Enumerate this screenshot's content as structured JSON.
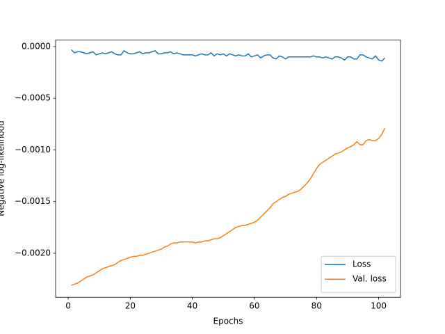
{
  "chart_data": {
    "type": "line",
    "x_label": "Epochs",
    "y_label": "Negative log-likelihood",
    "x": [
      1,
      2,
      3,
      4,
      5,
      6,
      7,
      8,
      9,
      10,
      11,
      12,
      13,
      14,
      15,
      16,
      17,
      18,
      19,
      20,
      21,
      22,
      23,
      24,
      25,
      26,
      27,
      28,
      29,
      30,
      31,
      32,
      33,
      34,
      35,
      36,
      37,
      38,
      39,
      40,
      41,
      42,
      43,
      44,
      45,
      46,
      47,
      48,
      49,
      50,
      51,
      52,
      53,
      54,
      55,
      56,
      57,
      58,
      59,
      60,
      61,
      62,
      63,
      64,
      65,
      66,
      67,
      68,
      69,
      70,
      71,
      72,
      73,
      74,
      75,
      76,
      77,
      78,
      79,
      80,
      81,
      82,
      83,
      84,
      85,
      86,
      87,
      88,
      89,
      90,
      91,
      92,
      93,
      94,
      95,
      96,
      97,
      98,
      99,
      100,
      101,
      102
    ],
    "series": [
      {
        "name": "Loss",
        "color": "#1f77b4",
        "values": [
          -3e-05,
          -6e-05,
          -5e-05,
          -5e-05,
          -6e-05,
          -7e-05,
          -6e-05,
          -5e-05,
          -8e-05,
          -7e-05,
          -6e-05,
          -7e-05,
          -6e-05,
          -5e-05,
          -7e-05,
          -8e-05,
          -8e-05,
          -4e-05,
          -6e-05,
          -7e-05,
          -7e-05,
          -6e-05,
          -5e-05,
          -7e-05,
          -6e-05,
          -6e-05,
          -5e-05,
          -4e-05,
          -7e-05,
          -7e-05,
          -6e-05,
          -6e-05,
          -5e-05,
          -7e-05,
          -6e-05,
          -7e-05,
          -8e-05,
          -8e-05,
          -8e-05,
          -8e-05,
          -9e-05,
          -8e-05,
          -7e-05,
          -8e-05,
          -8e-05,
          -6e-05,
          -9e-05,
          -7e-05,
          -8e-05,
          -7e-05,
          -9e-05,
          -7e-05,
          -8e-05,
          -9e-05,
          -8e-05,
          -9e-05,
          -9e-05,
          -7e-05,
          -0.0001,
          -9e-05,
          -8e-05,
          -0.00011,
          -9e-05,
          -8e-05,
          -8e-05,
          -0.00011,
          -0.00012,
          -9e-05,
          -0.0001,
          -0.00012,
          -0.0001,
          -0.0001,
          -0.0001,
          -0.0001,
          -0.0001,
          -0.0001,
          -0.0001,
          -0.0001,
          -9e-05,
          -0.0001,
          -0.0001,
          -0.00011,
          -0.0001,
          -0.00011,
          -0.00012,
          -0.0001,
          -0.0001,
          -0.00011,
          -0.00013,
          -0.0001,
          -0.0001,
          -0.00012,
          -0.00012,
          -8e-05,
          -8e-05,
          -0.0001,
          -0.00011,
          -0.00012,
          -9e-05,
          -0.00013,
          -0.00014,
          -0.00011
        ]
      },
      {
        "name": "Val. loss",
        "color": "#ff7f0e",
        "values": [
          -0.00231,
          -0.0023,
          -0.00229,
          -0.00227,
          -0.00225,
          -0.00223,
          -0.00222,
          -0.00221,
          -0.00219,
          -0.00217,
          -0.00215,
          -0.00214,
          -0.00213,
          -0.00212,
          -0.00211,
          -0.00209,
          -0.00207,
          -0.00206,
          -0.00205,
          -0.00204,
          -0.00203,
          -0.00203,
          -0.00202,
          -0.00202,
          -0.00201,
          -0.002,
          -0.00199,
          -0.00198,
          -0.00197,
          -0.00196,
          -0.00194,
          -0.00193,
          -0.00191,
          -0.0019,
          -0.0019,
          -0.00189,
          -0.00189,
          -0.00189,
          -0.00189,
          -0.00189,
          -0.0019,
          -0.00189,
          -0.00189,
          -0.00188,
          -0.00188,
          -0.00187,
          -0.00186,
          -0.00186,
          -0.00185,
          -0.00183,
          -0.00181,
          -0.00179,
          -0.00177,
          -0.00175,
          -0.00174,
          -0.00173,
          -0.00173,
          -0.00172,
          -0.00171,
          -0.0017,
          -0.00168,
          -0.00165,
          -0.00162,
          -0.00159,
          -0.00156,
          -0.00152,
          -0.0015,
          -0.00148,
          -0.00146,
          -0.00145,
          -0.00143,
          -0.00142,
          -0.00141,
          -0.0014,
          -0.00138,
          -0.00135,
          -0.00132,
          -0.00128,
          -0.00123,
          -0.00118,
          -0.00114,
          -0.00112,
          -0.0011,
          -0.00108,
          -0.00106,
          -0.00104,
          -0.00103,
          -0.00102,
          -0.001,
          -0.00098,
          -0.00097,
          -0.00095,
          -0.00092,
          -0.00095,
          -0.00095,
          -0.00091,
          -0.0009,
          -0.00091,
          -0.00091,
          -0.00089,
          -0.00085,
          -0.00079
        ]
      }
    ],
    "xlim": [
      -4.05,
      107.05
    ],
    "xticks": [
      0,
      20,
      40,
      60,
      80,
      100
    ],
    "ylim": [
      -0.002426,
      6.3e-05
    ],
    "yticks": [
      {
        "value": 0,
        "label": "0.0000"
      },
      {
        "value": -0.0005,
        "label": "−0.0005"
      },
      {
        "value": -0.001,
        "label": "−0.0010"
      },
      {
        "value": -0.0015,
        "label": "−0.0015"
      },
      {
        "value": -0.002,
        "label": "−0.0020"
      }
    ],
    "legend": "lower right"
  }
}
